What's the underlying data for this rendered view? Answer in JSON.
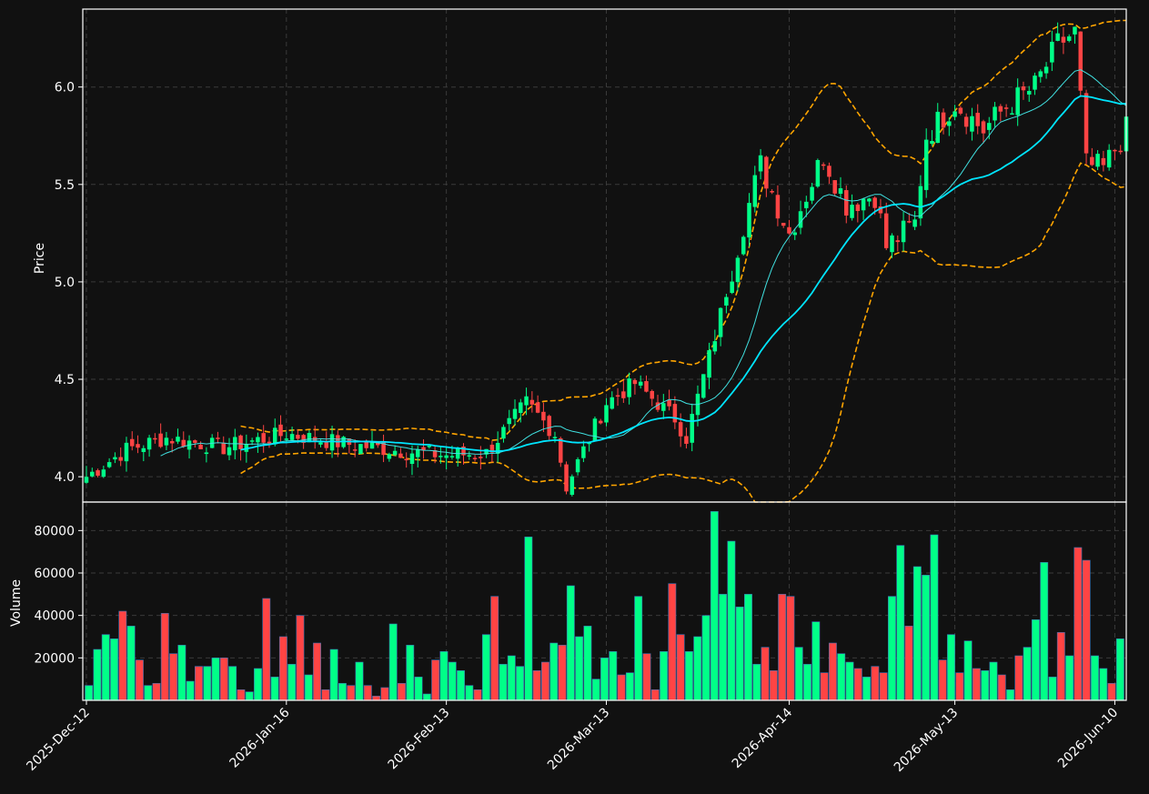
{
  "chart_data": [
    {
      "type": "candlestick",
      "panel": "price",
      "ylabel": "Price",
      "ylim": [
        3.87,
        6.4
      ],
      "yticks": [
        4.0,
        4.5,
        5.0,
        5.5,
        6.0
      ],
      "ytick_labels": [
        "4.0",
        "4.5",
        "5.0",
        "5.5",
        "6.0"
      ],
      "grid": true,
      "x_start": "2025-12-12",
      "x_end": "2026-06-12",
      "xticks": [
        "2025-12-12",
        "2026-01-16",
        "2026-02-13",
        "2026-03-13",
        "2026-04-14",
        "2026-05-13",
        "2026-06-10"
      ],
      "xtick_labels": [
        "2025-Dec-12",
        "2026-Jan-16",
        "2026-Feb-13",
        "2026-Mar-13",
        "2026-Apr-14",
        "2026-May-13",
        "2026-Jun-10"
      ],
      "colors": {
        "up": "#00ff88",
        "down": "#ff4444",
        "ma_fast": "#40e0e0",
        "ma_slow": "#00e5ff",
        "bands": "#ffa500"
      },
      "keypoints": [
        {
          "date": "2025-12-12",
          "close": 4.0
        },
        {
          "date": "2025-12-19",
          "close": 4.14
        },
        {
          "date": "2025-12-26",
          "close": 4.2
        },
        {
          "date": "2026-01-05",
          "close": 4.15
        },
        {
          "date": "2026-01-16",
          "close": 4.22
        },
        {
          "date": "2026-01-26",
          "close": 4.17
        },
        {
          "date": "2026-02-06",
          "close": 4.13
        },
        {
          "date": "2026-02-13",
          "close": 4.11
        },
        {
          "date": "2026-02-20",
          "close": 4.12
        },
        {
          "date": "2026-02-27",
          "close": 4.38
        },
        {
          "date": "2026-03-04",
          "close": 4.22
        },
        {
          "date": "2026-03-06",
          "close": 3.95
        },
        {
          "date": "2026-03-13",
          "close": 4.38
        },
        {
          "date": "2026-03-18",
          "close": 4.48
        },
        {
          "date": "2026-03-25",
          "close": 4.3
        },
        {
          "date": "2026-03-27",
          "close": 4.2
        },
        {
          "date": "2026-04-01",
          "close": 4.72
        },
        {
          "date": "2026-04-06",
          "close": 5.3
        },
        {
          "date": "2026-04-09",
          "close": 5.6
        },
        {
          "date": "2026-04-14",
          "close": 5.25
        },
        {
          "date": "2026-04-20",
          "close": 5.65
        },
        {
          "date": "2026-04-24",
          "close": 5.4
        },
        {
          "date": "2026-04-29",
          "close": 5.45
        },
        {
          "date": "2026-05-01",
          "close": 5.18
        },
        {
          "date": "2026-05-06",
          "close": 5.3
        },
        {
          "date": "2026-05-08",
          "close": 5.75
        },
        {
          "date": "2026-05-13",
          "close": 5.92
        },
        {
          "date": "2026-05-18",
          "close": 5.78
        },
        {
          "date": "2026-05-22",
          "close": 5.9
        },
        {
          "date": "2026-05-27",
          "close": 6.0
        },
        {
          "date": "2026-05-31",
          "close": 6.22
        },
        {
          "date": "2026-06-03",
          "close": 6.28
        },
        {
          "date": "2026-06-05",
          "close": 5.6
        },
        {
          "date": "2026-06-08",
          "close": 5.58
        },
        {
          "date": "2026-06-12",
          "close": 5.78
        }
      ]
    },
    {
      "type": "bar",
      "panel": "volume",
      "ylabel": "Volume",
      "ylim": [
        0,
        90000
      ],
      "yticks": [
        20000,
        40000,
        60000,
        80000
      ],
      "ytick_labels": [
        "20000",
        "40000",
        "60000",
        "80000"
      ],
      "grid": true,
      "values": [
        7000,
        24000,
        31000,
        29000,
        42000,
        35000,
        19000,
        7000,
        8000,
        41000,
        22000,
        26000,
        9000,
        16000,
        16000,
        20000,
        20000,
        16000,
        5000,
        4000,
        15000,
        48000,
        11000,
        30000,
        17000,
        40000,
        12000,
        27000,
        5000,
        24000,
        8000,
        7000,
        18000,
        7000,
        2000,
        6000,
        36000,
        8000,
        26000,
        11000,
        3000,
        19000,
        23000,
        18000,
        14000,
        7000,
        5000,
        31000,
        49000,
        17000,
        21000,
        16000,
        77000,
        14000,
        18000,
        27000,
        26000,
        54000,
        30000,
        35000,
        10000,
        20000,
        23000,
        12000,
        13000,
        49000,
        22000,
        5000,
        23000,
        55000,
        31000,
        23000,
        30000,
        40000,
        89000,
        50000,
        75000,
        44000,
        50000,
        17000,
        25000,
        14000,
        50000,
        49000,
        25000,
        17000,
        37000,
        13000,
        27000,
        22000,
        18000,
        15000,
        11000,
        16000,
        13000,
        49000,
        73000,
        35000,
        63000,
        59000,
        78000,
        19000,
        31000,
        13000,
        28000,
        15000,
        14000,
        18000,
        12000,
        5000,
        21000,
        25000,
        38000,
        65000,
        11000,
        32000,
        21000,
        72000,
        66000,
        21000,
        15000,
        8000,
        29000
      ]
    }
  ]
}
